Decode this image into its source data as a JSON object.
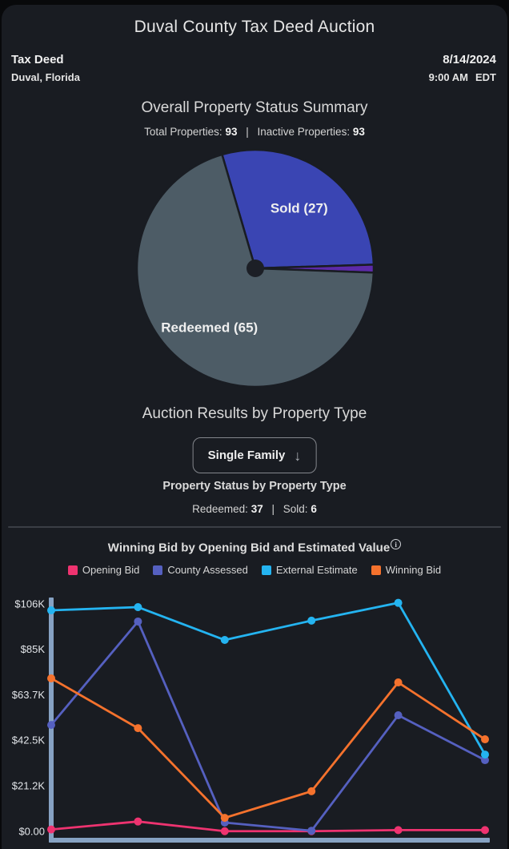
{
  "page_title": "Duval County Tax Deed Auction",
  "header": {
    "auction_type": "Tax Deed",
    "location": "Duval, Florida",
    "date": "8/14/2024",
    "time": "9:00 AM",
    "timezone": "EDT"
  },
  "summary": {
    "heading": "Overall Property Status Summary",
    "total_label": "Total Properties:",
    "total_value": "93",
    "separator": "|",
    "inactive_label": "Inactive Properties:",
    "inactive_value": "93"
  },
  "by_type": {
    "heading": "Auction Results by Property Type",
    "dropdown_value": "Single Family",
    "dropdown_arrow": "↓",
    "sub_heading": "Property Status by Property Type",
    "redeemed_label": "Redeemed:",
    "redeemed_value": "37",
    "separator": "|",
    "sold_label": "Sold:",
    "sold_value": "6"
  },
  "bid_section": {
    "title": "Winning Bid by Opening Bid and Estimated Value",
    "info_glyph": "i"
  },
  "colors": {
    "background": "#08090b",
    "card": "#191c22",
    "axis": "#86a2c3",
    "divider": "#3a3e45",
    "pie_sold": "#3a45b3",
    "pie_other": "#5d2aa9",
    "pie_redeemed": "#4d5c66",
    "pie_center_dot": "#1c1f26",
    "opening_bid": "#ee3370",
    "county_assessed": "#5560c0",
    "external_estimate": "#24b4f1",
    "winning_bid": "#f5722d"
  },
  "chart_data": [
    {
      "type": "pie",
      "title": "Overall Property Status Summary",
      "total": 93,
      "start_angle_deg": -16.3,
      "slices": [
        {
          "label": "Sold (27)",
          "value": 27,
          "color": "#3a45b3"
        },
        {
          "label": "",
          "value": 1,
          "color": "#5d2aa9"
        },
        {
          "label": "Redeemed (65)",
          "value": 65,
          "color": "#4d5c66"
        }
      ]
    },
    {
      "type": "line",
      "title": "Winning Bid by Opening Bid and Estimated Value",
      "x": [
        1,
        2,
        3,
        4,
        5,
        6
      ],
      "x_tick_labels_visible": false,
      "ylim": [
        0,
        106000
      ],
      "grid": false,
      "legend_position": "top",
      "y_ticks": [
        {
          "value": 0,
          "label": "$0.00"
        },
        {
          "value": 21200,
          "label": "$21.2K"
        },
        {
          "value": 42500,
          "label": "$42.5K"
        },
        {
          "value": 63700,
          "label": "$63.7K"
        },
        {
          "value": 85000,
          "label": "$85K"
        },
        {
          "value": 106000,
          "label": "$106K"
        }
      ],
      "series": [
        {
          "name": "Opening Bid",
          "color": "#ee3370",
          "values": [
            900,
            4600,
            100,
            100,
            600,
            600
          ]
        },
        {
          "name": "County Assessed",
          "color": "#5560c0",
          "values": [
            49600,
            97800,
            4100,
            300,
            54100,
            33200
          ]
        },
        {
          "name": "External Estimate",
          "color": "#24b4f1",
          "values": [
            103000,
            104500,
            89200,
            98200,
            106500,
            35800
          ]
        },
        {
          "name": "Winning Bid",
          "color": "#f5722d",
          "values": [
            71300,
            48100,
            6300,
            18700,
            69400,
            42900
          ]
        }
      ]
    }
  ]
}
